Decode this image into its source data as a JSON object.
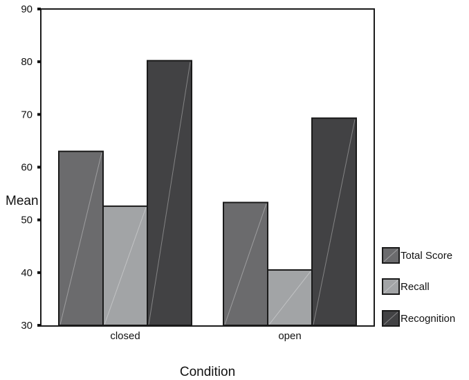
{
  "chart_data": {
    "type": "bar",
    "title": "",
    "xlabel": "Condition",
    "ylabel": "Mean",
    "categories": [
      "closed",
      "open"
    ],
    "series": [
      {
        "name": "Total Score",
        "values": [
          63,
          53.3
        ],
        "color": "#6b6b6d"
      },
      {
        "name": "Recall",
        "values": [
          52.6,
          40.5
        ],
        "color": "#a2a4a6"
      },
      {
        "name": "Recognition",
        "values": [
          80.2,
          69.3
        ],
        "color": "#424244"
      }
    ],
    "ylim": [
      30,
      90
    ],
    "yticks": [
      "30",
      "40",
      "50",
      "60",
      "70",
      "80",
      "90"
    ],
    "grid": false,
    "legend": "right"
  }
}
